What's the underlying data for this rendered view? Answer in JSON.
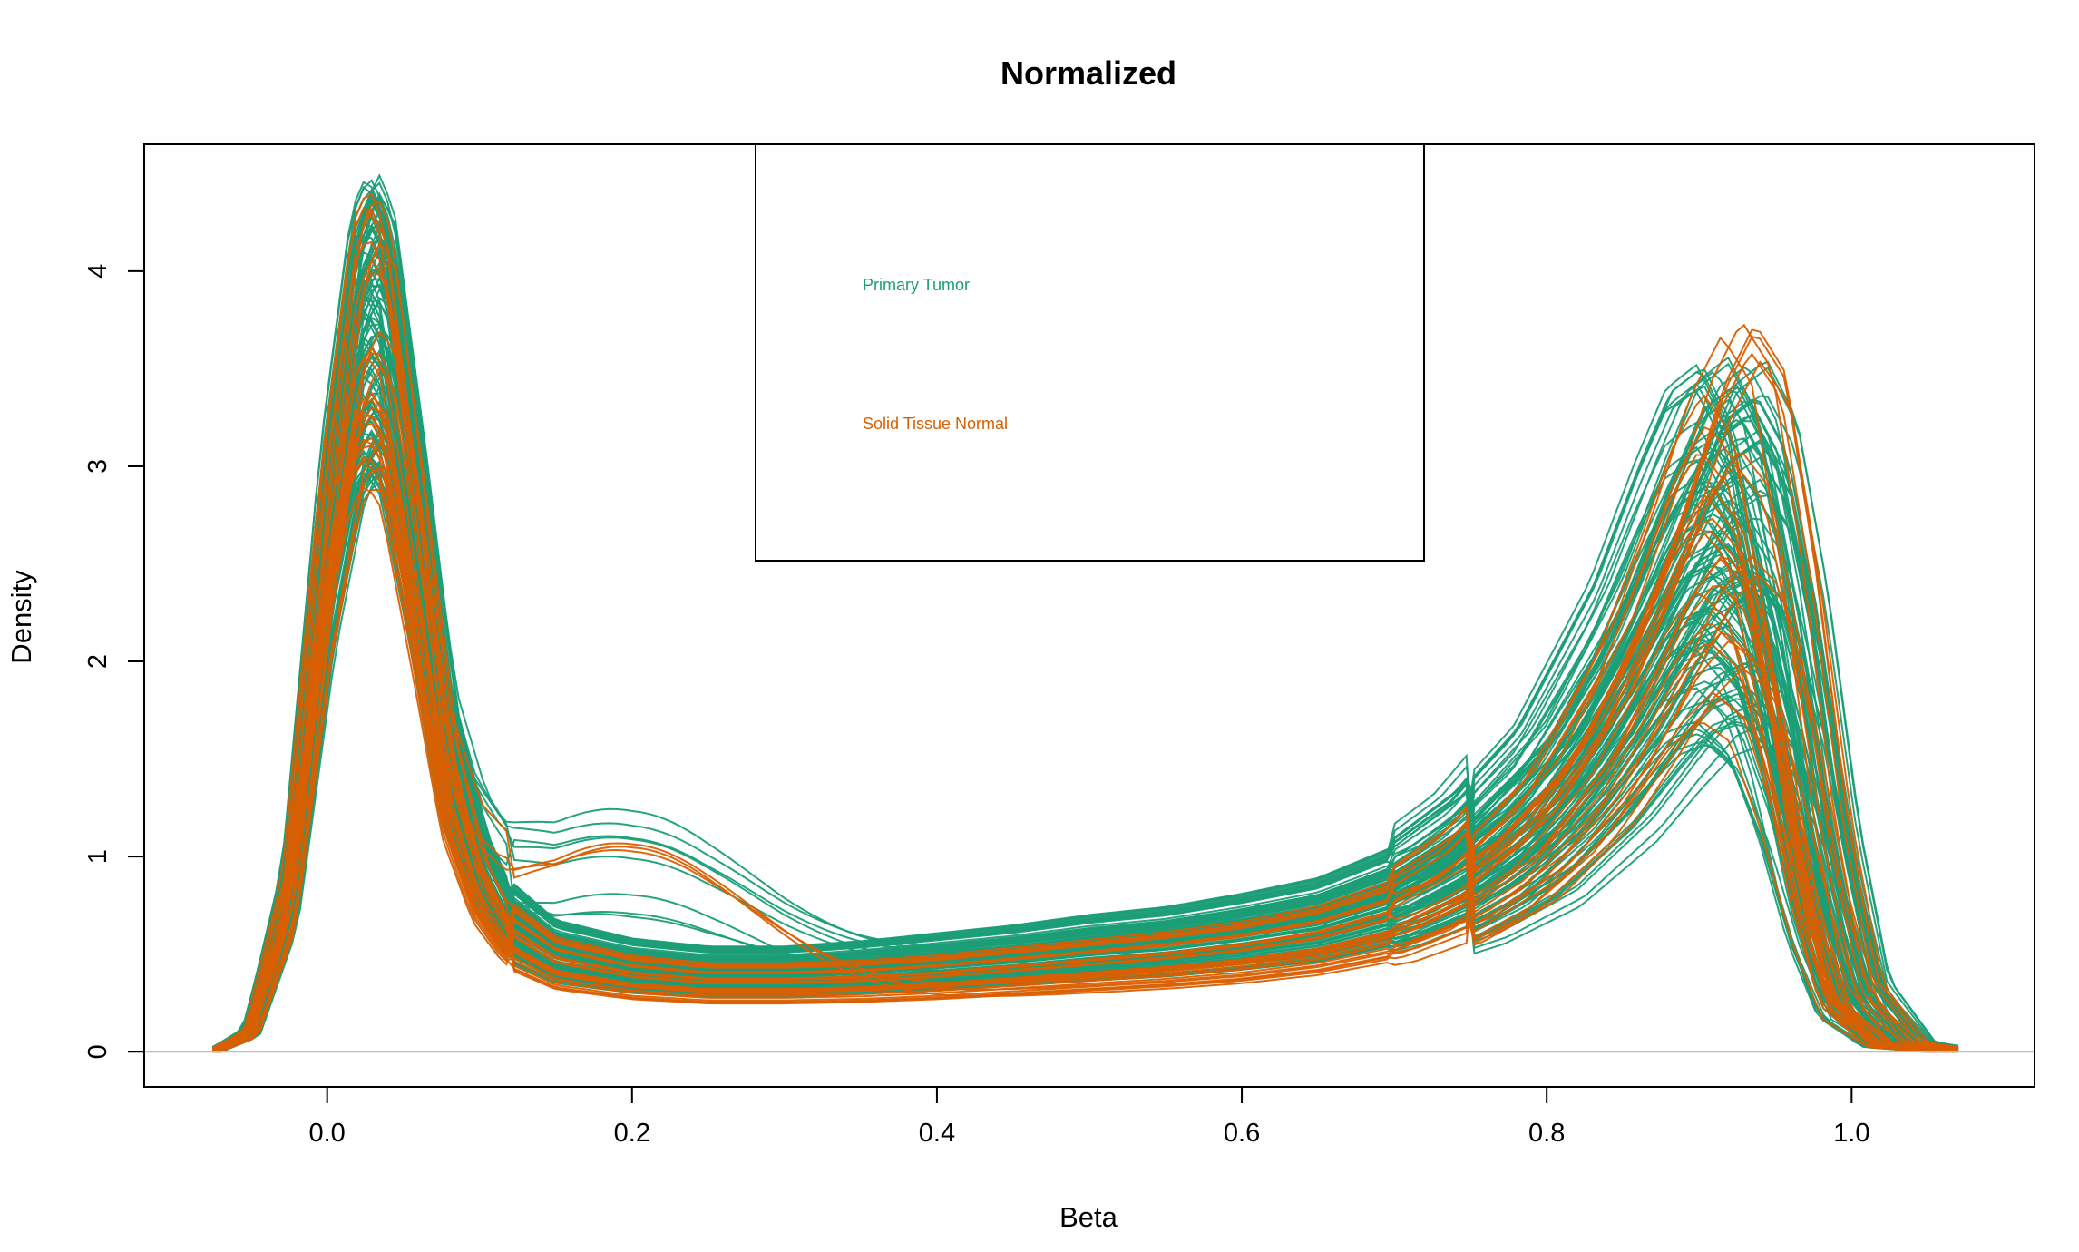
{
  "chart_data": {
    "type": "line",
    "title": "Normalized",
    "xlabel": "Beta",
    "ylabel": "Density",
    "xlim": [
      -0.12,
      1.12
    ],
    "ylim": [
      -0.18,
      4.65
    ],
    "xticks": [
      0.0,
      0.2,
      0.4,
      0.6,
      0.8,
      1.0
    ],
    "xtick_labels": [
      "0.0",
      "0.2",
      "0.4",
      "0.6",
      "0.8",
      "1.0"
    ],
    "yticks": [
      0,
      1,
      2,
      3,
      4
    ],
    "ytick_labels": [
      "0",
      "1",
      "2",
      "3",
      "4"
    ],
    "baseline": 0,
    "grid": false,
    "legend": {
      "position": "top-center"
    },
    "series": [
      {
        "name": "Primary Tumor",
        "color": "#1b9e77",
        "x": [
          -0.075,
          -0.05,
          -0.025,
          0.0,
          0.02,
          0.03,
          0.04,
          0.06,
          0.08,
          0.1,
          0.12,
          0.15,
          0.2,
          0.25,
          0.3,
          0.35,
          0.4,
          0.45,
          0.5,
          0.55,
          0.6,
          0.65,
          0.7,
          0.75,
          0.8,
          0.85,
          0.88,
          0.9,
          0.92,
          0.94,
          0.96,
          0.98,
          1.0,
          1.03,
          1.07
        ],
        "y": [
          0.0,
          0.1,
          0.8,
          2.6,
          3.6,
          3.75,
          3.6,
          2.6,
          1.5,
          0.95,
          0.65,
          0.5,
          0.43,
          0.4,
          0.4,
          0.42,
          0.45,
          0.48,
          0.52,
          0.55,
          0.6,
          0.66,
          0.78,
          1.0,
          1.35,
          1.95,
          2.45,
          2.75,
          2.85,
          2.6,
          1.9,
          0.95,
          0.3,
          0.04,
          0.0
        ]
      },
      {
        "name": "Solid Tissue Normal",
        "color": "#d95f02",
        "x": [
          -0.075,
          -0.05,
          -0.025,
          0.0,
          0.02,
          0.03,
          0.04,
          0.06,
          0.08,
          0.1,
          0.12,
          0.15,
          0.2,
          0.25,
          0.3,
          0.35,
          0.4,
          0.45,
          0.5,
          0.55,
          0.6,
          0.65,
          0.7,
          0.75,
          0.8,
          0.85,
          0.88,
          0.9,
          0.92,
          0.94,
          0.96,
          0.98,
          1.0,
          1.03,
          1.07
        ],
        "y": [
          0.0,
          0.09,
          0.75,
          2.5,
          3.55,
          3.7,
          3.55,
          2.5,
          1.4,
          0.85,
          0.58,
          0.44,
          0.37,
          0.34,
          0.34,
          0.35,
          0.37,
          0.4,
          0.43,
          0.46,
          0.5,
          0.56,
          0.66,
          0.86,
          1.2,
          1.8,
          2.35,
          2.75,
          3.0,
          2.8,
          2.0,
          1.0,
          0.3,
          0.04,
          0.0
        ]
      }
    ]
  },
  "legend_labels": [
    "Primary Tumor",
    "Solid Tissue Normal"
  ],
  "colors": {
    "tumor": "#1b9e77",
    "normal": "#d95f02",
    "baseline": "#bebebe",
    "axis": "#000000"
  }
}
